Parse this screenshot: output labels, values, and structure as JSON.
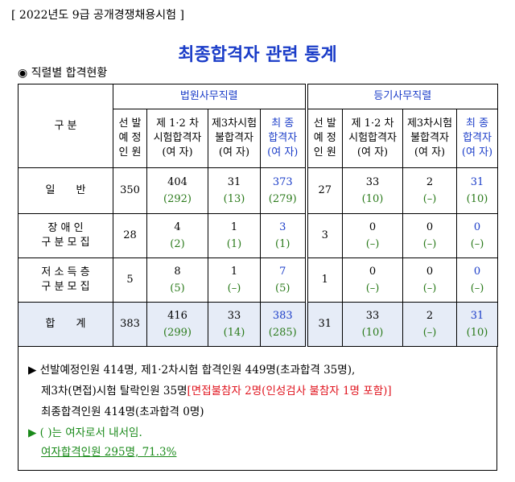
{
  "header": "[ 2022년도 9급 공개경쟁채용시험 ]",
  "title": "최종합격자 관련 통계",
  "section": "◉ 직렬별 합격현황",
  "table": {
    "corner": "구 분",
    "groups": [
      "법원사무직렬",
      "등기사무직렬"
    ],
    "subheaders": [
      [
        "선 발",
        "예 정",
        "인 원"
      ],
      [
        "제 1·2 차",
        "시험합격자",
        "(여 자)"
      ],
      [
        "제3차시험",
        "불합격자",
        "(여 자)"
      ],
      [
        "최 종",
        "합격자",
        "(여 자)"
      ],
      [
        "선 발",
        "예 정",
        "인 원"
      ],
      [
        "제 1·2 차",
        "시험합격자",
        "(여 자)"
      ],
      [
        "제3차시험",
        "불합격자",
        "(여 자)"
      ],
      [
        "최 종",
        "합격자",
        "(여 자)"
      ]
    ],
    "rows": [
      {
        "label": [
          "일　　반"
        ],
        "cells": [
          [
            "350"
          ],
          [
            "404",
            "(292)"
          ],
          [
            "31",
            "(13)"
          ],
          [
            "373",
            "(279)"
          ],
          [
            "27"
          ],
          [
            "33",
            "(10)"
          ],
          [
            "2",
            "(–)"
          ],
          [
            "31",
            "(10)"
          ]
        ]
      },
      {
        "label": [
          "장 애 인",
          "구 분 모 집"
        ],
        "cells": [
          [
            "28"
          ],
          [
            "4",
            "(2)"
          ],
          [
            "1",
            "(1)"
          ],
          [
            "3",
            "(1)"
          ],
          [
            "3"
          ],
          [
            "0",
            "(–)"
          ],
          [
            "0",
            "(–)"
          ],
          [
            "0",
            "(–)"
          ]
        ]
      },
      {
        "label": [
          "저 소 득 층",
          "구 분 모 집"
        ],
        "cells": [
          [
            "5"
          ],
          [
            "8",
            "(5)"
          ],
          [
            "1",
            "(–)"
          ],
          [
            "7",
            "(5)"
          ],
          [
            "1"
          ],
          [
            "0",
            "(–)"
          ],
          [
            "0",
            "(–)"
          ],
          [
            "0",
            "(–)"
          ]
        ]
      }
    ],
    "total_row": {
      "label": [
        "합　　계"
      ],
      "cells": [
        [
          "383"
        ],
        [
          "416",
          "(299)"
        ],
        [
          "33",
          "(14)"
        ],
        [
          "383",
          "(285)"
        ],
        [
          "31"
        ],
        [
          "33",
          "(10)"
        ],
        [
          "2",
          "(–)"
        ],
        [
          "31",
          "(10)"
        ]
      ]
    }
  },
  "notes": [
    [
      "▶ 선발예정인원 414명, 제1·2차시험 합격인원 449명(초과합격 35명),"
    ],
    [
      "제3차(면접)시험 탈락인원 35명",
      "[면접불참자 2명(인성검사 불참자 1명 포함)]"
    ],
    [
      "최종합격인원 414명(초과합격 0명)"
    ],
    [
      "▶ (   )는 여자로서 내서임."
    ],
    [
      "여자합격인원 295명, 71.3%"
    ]
  ]
}
